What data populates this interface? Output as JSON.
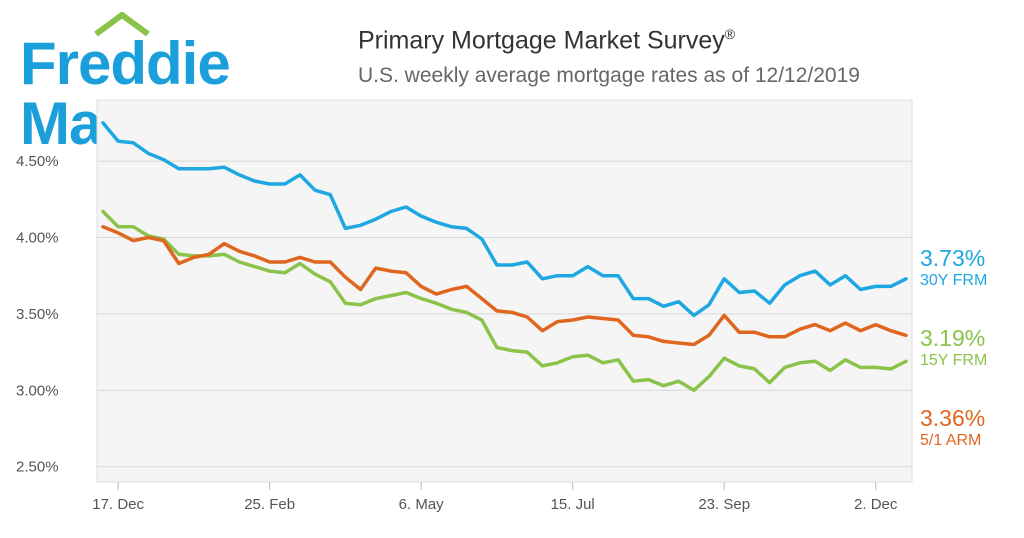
{
  "brand": {
    "name": "Freddie Mac"
  },
  "header": {
    "title": "Primary Mortgage Market Survey",
    "title_mark": "®",
    "subtitle": "U.S. weekly average mortgage rates as of 12/12/2019"
  },
  "colors": {
    "frm30": "#1ea7e1",
    "frm15": "#8bc34a",
    "arm51": "#e0661f",
    "brand": "#1a9fdb"
  },
  "legend": [
    {
      "key": "frm30",
      "value": "3.73%",
      "name": "30Y FRM"
    },
    {
      "key": "frm15",
      "value": "3.19%",
      "name": "15Y FRM"
    },
    {
      "key": "arm51",
      "value": "3.36%",
      "name": "5/1 ARM"
    }
  ],
  "chart_data": {
    "type": "line",
    "title": "Primary Mortgage Market Survey",
    "ylim": [
      2.4,
      4.9
    ],
    "yticks": [
      2.5,
      3.0,
      3.5,
      4.0,
      4.5
    ],
    "ytick_labels": [
      "2.50%",
      "3.00%",
      "3.50%",
      "4.00%",
      "4.50%"
    ],
    "xticks": [
      {
        "index": 1,
        "label": "17. Dec"
      },
      {
        "index": 11,
        "label": "25. Feb"
      },
      {
        "index": 21,
        "label": "6. May"
      },
      {
        "index": 31,
        "label": "15. Jul"
      },
      {
        "index": 41,
        "label": "23. Sep"
      },
      {
        "index": 51,
        "label": "2. Dec"
      }
    ],
    "grid": true,
    "series": [
      {
        "name": "30Y FRM",
        "key": "frm30",
        "values": [
          4.75,
          4.63,
          4.62,
          4.55,
          4.51,
          4.45,
          4.45,
          4.45,
          4.46,
          4.41,
          4.37,
          4.35,
          4.35,
          4.41,
          4.31,
          4.28,
          4.06,
          4.08,
          4.12,
          4.17,
          4.2,
          4.14,
          4.1,
          4.07,
          4.06,
          3.99,
          3.82,
          3.82,
          3.84,
          3.73,
          3.75,
          3.75,
          3.81,
          3.75,
          3.75,
          3.6,
          3.6,
          3.55,
          3.58,
          3.49,
          3.56,
          3.73,
          3.64,
          3.65,
          3.57,
          3.69,
          3.75,
          3.78,
          3.69,
          3.75,
          3.66,
          3.68,
          3.68,
          3.73
        ]
      },
      {
        "name": "15Y FRM",
        "key": "frm15",
        "values": [
          4.17,
          4.07,
          4.07,
          4.01,
          3.99,
          3.89,
          3.88,
          3.88,
          3.89,
          3.84,
          3.81,
          3.78,
          3.77,
          3.83,
          3.76,
          3.71,
          3.57,
          3.56,
          3.6,
          3.62,
          3.64,
          3.6,
          3.57,
          3.53,
          3.51,
          3.46,
          3.28,
          3.26,
          3.25,
          3.16,
          3.18,
          3.22,
          3.23,
          3.18,
          3.2,
          3.06,
          3.07,
          3.03,
          3.06,
          3.0,
          3.09,
          3.21,
          3.16,
          3.14,
          3.05,
          3.15,
          3.18,
          3.19,
          3.13,
          3.2,
          3.15,
          3.15,
          3.14,
          3.19
        ]
      },
      {
        "name": "5/1 ARM",
        "key": "arm51",
        "values": [
          4.07,
          4.03,
          3.98,
          4.0,
          3.98,
          3.83,
          3.87,
          3.89,
          3.96,
          3.91,
          3.88,
          3.84,
          3.84,
          3.87,
          3.84,
          3.84,
          3.74,
          3.66,
          3.8,
          3.78,
          3.77,
          3.68,
          3.63,
          3.66,
          3.68,
          3.6,
          3.52,
          3.51,
          3.48,
          3.39,
          3.45,
          3.46,
          3.48,
          3.47,
          3.46,
          3.36,
          3.35,
          3.32,
          3.31,
          3.3,
          3.36,
          3.49,
          3.38,
          3.38,
          3.35,
          3.35,
          3.4,
          3.43,
          3.39,
          3.44,
          3.39,
          3.43,
          3.39,
          3.36
        ]
      }
    ]
  }
}
